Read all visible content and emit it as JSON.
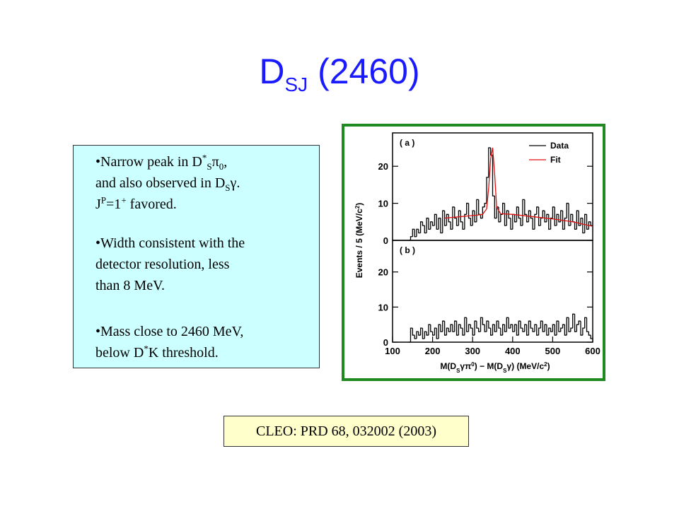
{
  "header": {
    "title": [
      {
        "text": "D"
      },
      {
        "sub": "SJ"
      },
      {
        "text": " (2460)"
      }
    ]
  },
  "bullets": [
    {
      "lines": [
        [
          {
            "text": "•Narrow peak in D"
          },
          {
            "sup": "*"
          },
          {
            "sub": "S"
          },
          {
            "text": "π"
          },
          {
            "sub": "0"
          },
          {
            "text": ","
          }
        ],
        [
          {
            "text": "and also observed in D"
          },
          {
            "sub": "S"
          },
          {
            "text": "γ."
          }
        ],
        [
          {
            "text": "J"
          },
          {
            "sup": "P"
          },
          {
            "text": "=1"
          },
          {
            "sup": "+"
          },
          {
            "text": " favored."
          }
        ]
      ]
    },
    {
      "lines": [
        [
          {
            "text": "•Width consistent with the"
          }
        ],
        [
          {
            "text": "detector resolution, less"
          }
        ],
        [
          {
            "text": "than 8 MeV."
          }
        ]
      ]
    },
    {
      "lines": [
        [
          {
            "text": "•Mass close to 2460 MeV,"
          }
        ],
        [
          {
            "text": "below D"
          },
          {
            "sup": "*"
          },
          {
            "text": "K threshold."
          }
        ]
      ]
    }
  ],
  "citation": "CLEO: PRD 68, 032002 (2003)",
  "chart_data": [
    {
      "type": "histogram",
      "label": "( a )",
      "ylabel": [
        {
          "text": "Events / 5 (MeV/c"
        },
        {
          "sup": "2"
        },
        {
          "text": ")"
        }
      ],
      "xlim": [
        100,
        600
      ],
      "ylim": [
        0,
        29
      ],
      "yticks": [
        0,
        10,
        20
      ],
      "bins": [
        140,
        145,
        150,
        155,
        160,
        165,
        170,
        175,
        180,
        185,
        190,
        195,
        200,
        205,
        210,
        215,
        220,
        225,
        230,
        235,
        240,
        245,
        250,
        255,
        260,
        265,
        270,
        275,
        280,
        285,
        290,
        295,
        300,
        305,
        310,
        315,
        320,
        325,
        330,
        335,
        340,
        345,
        350,
        355,
        360,
        365,
        370,
        375,
        380,
        385,
        390,
        395,
        400,
        405,
        410,
        415,
        420,
        425,
        430,
        435,
        440,
        445,
        450,
        455,
        460,
        465,
        470,
        475,
        480,
        485,
        490,
        495,
        500,
        505,
        510,
        515,
        520,
        525,
        530,
        535,
        540,
        545,
        550,
        555,
        560,
        565,
        570,
        575,
        580,
        585,
        590,
        595,
        600
      ],
      "series": [
        {
          "name": "Data",
          "color": "#000000",
          "values": [
            0,
            1,
            3,
            1,
            3,
            2,
            5,
            4,
            2,
            6,
            3,
            5,
            4,
            7,
            3,
            6,
            2,
            8,
            4,
            7,
            5,
            3,
            9,
            6,
            4,
            8,
            5,
            3,
            7,
            10,
            6,
            4,
            8,
            5,
            11,
            7,
            6,
            9,
            10,
            17,
            25,
            23,
            12,
            6,
            9,
            5,
            7,
            10,
            4,
            8,
            6,
            3,
            7,
            5,
            9,
            6,
            4,
            11,
            7,
            5,
            8,
            6,
            3,
            7,
            9,
            4,
            6,
            8,
            5,
            7,
            3,
            6,
            9,
            4,
            7,
            5,
            8,
            3,
            6,
            10,
            4,
            7,
            5,
            3,
            8,
            4,
            6,
            2,
            7,
            3,
            5,
            4
          ]
        }
      ],
      "fit": {
        "name": "Fit",
        "color": "#e01010",
        "x": [
          230,
          250,
          270,
          290,
          310,
          325,
          335,
          340,
          345,
          350,
          355,
          360,
          370,
          400,
          450,
          500,
          550,
          600
        ],
        "values": [
          6,
          6.2,
          6.4,
          6.6,
          6.8,
          7,
          8.5,
          14,
          22,
          25,
          18,
          9,
          7.2,
          7,
          6.4,
          5.8,
          5,
          3.8
        ]
      }
    },
    {
      "type": "histogram",
      "label": "( b )",
      "xlabel": [
        {
          "text": "M(D"
        },
        {
          "sub": "S"
        },
        {
          "text": "γπ"
        },
        {
          "sup": "0"
        },
        {
          "text": ") − M(D"
        },
        {
          "sub": "S"
        },
        {
          "text": "γ) (MeV/c"
        },
        {
          "sup": "2"
        },
        {
          "text": ")"
        }
      ],
      "xlim": [
        100,
        600
      ],
      "xticks": [
        100,
        200,
        300,
        400,
        500,
        600
      ],
      "ylim": [
        0,
        29
      ],
      "yticks": [
        0,
        10,
        20
      ],
      "bins": [
        140,
        145,
        150,
        155,
        160,
        165,
        170,
        175,
        180,
        185,
        190,
        195,
        200,
        205,
        210,
        215,
        220,
        225,
        230,
        235,
        240,
        245,
        250,
        255,
        260,
        265,
        270,
        275,
        280,
        285,
        290,
        295,
        300,
        305,
        310,
        315,
        320,
        325,
        330,
        335,
        340,
        345,
        350,
        355,
        360,
        365,
        370,
        375,
        380,
        385,
        390,
        395,
        400,
        405,
        410,
        415,
        420,
        425,
        430,
        435,
        440,
        445,
        450,
        455,
        460,
        465,
        470,
        475,
        480,
        485,
        490,
        495,
        500,
        505,
        510,
        515,
        520,
        525,
        530,
        535,
        540,
        545,
        550,
        555,
        560,
        565,
        570,
        575,
        580,
        585,
        590,
        595,
        600
      ],
      "series": [
        {
          "color": "#000000",
          "values": [
            0,
            4,
            2,
            1,
            3,
            2,
            4,
            1,
            3,
            2,
            5,
            3,
            2,
            4,
            1,
            5,
            3,
            6,
            2,
            4,
            3,
            5,
            3,
            6,
            2,
            5,
            4,
            2,
            7,
            3,
            5,
            4,
            2,
            6,
            4,
            3,
            7,
            5,
            3,
            6,
            4,
            2,
            5,
            3,
            6,
            4,
            2,
            5,
            3,
            7,
            4,
            5,
            3,
            5,
            2,
            6,
            4,
            3,
            5,
            2,
            6,
            4,
            3,
            5,
            2,
            4,
            6,
            3,
            5,
            2,
            4,
            3,
            5,
            2,
            6,
            3,
            4,
            5,
            2,
            7,
            3,
            4,
            8,
            3,
            5,
            6,
            2,
            4,
            7,
            3,
            2,
            1
          ]
        }
      ]
    }
  ]
}
